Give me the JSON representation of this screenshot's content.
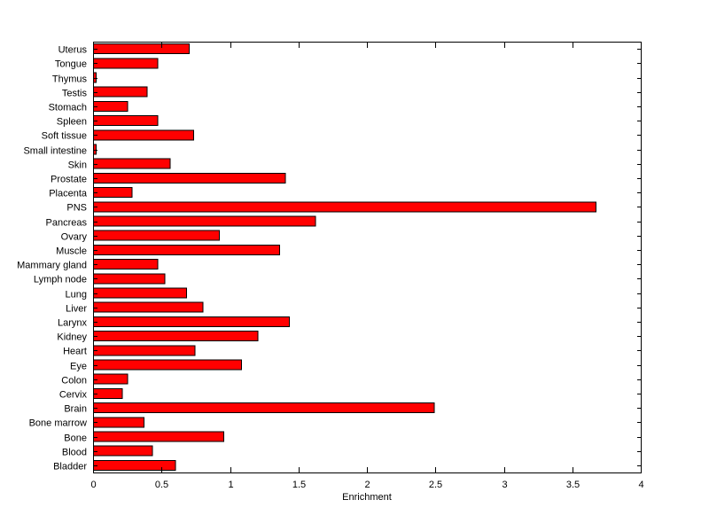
{
  "chart_data": {
    "type": "bar",
    "orientation": "horizontal",
    "title": "",
    "xlabel": "Enrichment",
    "ylabel": "",
    "xlim": [
      0,
      4
    ],
    "xticks": [
      0,
      0.5,
      1,
      1.5,
      2,
      2.5,
      3,
      3.5,
      4
    ],
    "xtick_labels": [
      "0",
      "0.5",
      "1",
      "1.5",
      "2",
      "2.5",
      "3",
      "3.5",
      "4"
    ],
    "grid": false,
    "legend": false,
    "bar_color": "#ff0000",
    "bar_edge_color": "#000000",
    "axis_color": "#000000",
    "background_color": "#ffffff",
    "categories": [
      "Uterus",
      "Tongue",
      "Thymus",
      "Testis",
      "Stomach",
      "Spleen",
      "Soft tissue",
      "Small intestine",
      "Skin",
      "Prostate",
      "Placenta",
      "PNS",
      "Pancreas",
      "Ovary",
      "Muscle",
      "Mammary gland",
      "Lymph node",
      "Lung",
      "Liver",
      "Larynx",
      "Kidney",
      "Heart",
      "Eye",
      "Colon",
      "Cervix",
      "Brain",
      "Bone marrow",
      "Bone",
      "Blood",
      "Bladder"
    ],
    "values": [
      0.7,
      0.47,
      0.02,
      0.39,
      0.25,
      0.47,
      0.73,
      0.02,
      0.56,
      1.4,
      0.28,
      3.67,
      1.62,
      0.92,
      1.36,
      0.47,
      0.52,
      0.68,
      0.8,
      1.43,
      1.2,
      0.74,
      1.08,
      0.25,
      0.21,
      2.49,
      0.37,
      0.95,
      0.43,
      0.6
    ]
  }
}
